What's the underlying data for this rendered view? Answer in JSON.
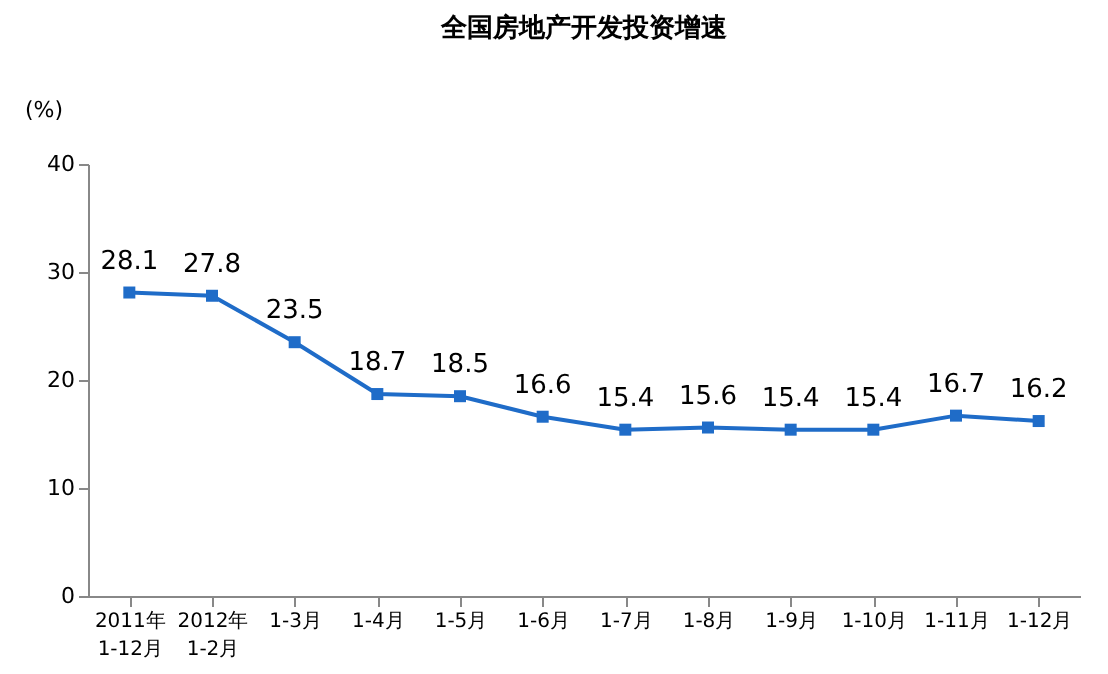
{
  "chart_data": {
    "type": "line",
    "title": "全国房地产开发投资增速",
    "ylabel": "(%)",
    "categories": [
      "2011年\n1-12月",
      "2012年\n1-2月",
      "1-3月",
      "1-4月",
      "1-5月",
      "1-6月",
      "1-7月",
      "1-8月",
      "1-9月",
      "1-10月",
      "1-11月",
      "1-12月"
    ],
    "series": [
      {
        "color": "#1f6cc8",
        "values": [
          28.1,
          27.8,
          23.5,
          18.7,
          18.5,
          16.6,
          15.4,
          15.6,
          15.4,
          15.4,
          16.7,
          16.2
        ]
      }
    ],
    "ylim": [
      0,
      40
    ],
    "yticks": [
      0,
      10,
      20,
      30,
      40
    ],
    "grid": false,
    "legend": false,
    "marker": "square",
    "line_style": "solid",
    "data_labels": true
  }
}
